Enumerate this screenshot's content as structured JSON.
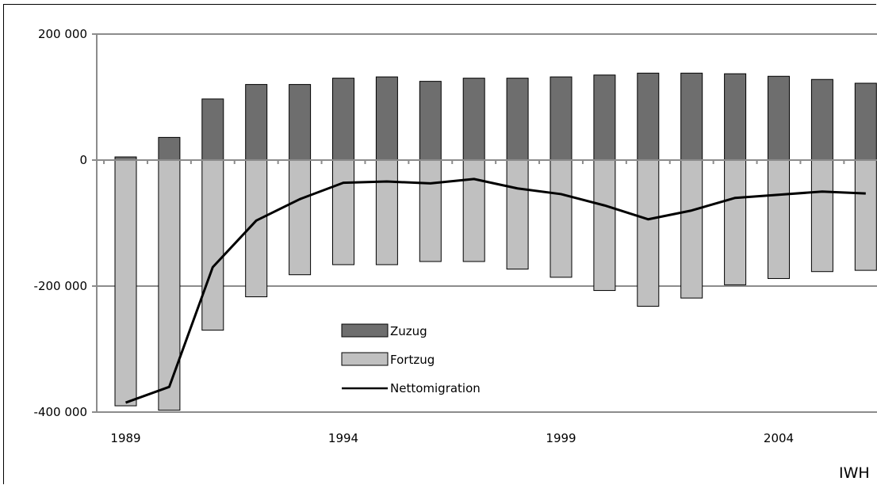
{
  "chart_data": {
    "type": "bar",
    "x": [
      1989,
      1990,
      1991,
      1992,
      1993,
      1994,
      1995,
      1996,
      1997,
      1998,
      1999,
      2000,
      2001,
      2002,
      2003,
      2004,
      2005,
      2006
    ],
    "xtick_labels": [
      "1989",
      "1994",
      "1999",
      "2004"
    ],
    "xtick_values": [
      1989,
      1994,
      1999,
      2004
    ],
    "ytick_labels": [
      "200 000",
      "0",
      "-200 000",
      "-400 000"
    ],
    "ytick_values": [
      200000,
      0,
      -200000,
      -400000
    ],
    "ylim": [
      -400000,
      200000
    ],
    "grid": true,
    "legend_position": "center-left",
    "series": [
      {
        "name": "Zuzug",
        "kind": "bar",
        "color": "#6e6e6e",
        "values": [
          5000,
          36000,
          97000,
          120000,
          120000,
          130000,
          132000,
          125000,
          130000,
          130000,
          132000,
          135000,
          138000,
          138000,
          137000,
          133000,
          128000,
          122000
        ]
      },
      {
        "name": "Fortzug",
        "kind": "bar",
        "color": "#c0c0c0",
        "values": [
          -390000,
          -397000,
          -270000,
          -217000,
          -182000,
          -166000,
          -166000,
          -161000,
          -161000,
          -173000,
          -186000,
          -207000,
          -232000,
          -219000,
          -198000,
          -188000,
          -177000,
          -175000
        ]
      },
      {
        "name": "Nettomigration",
        "kind": "line",
        "color": "#000000",
        "values": [
          -385000,
          -360000,
          -170000,
          -96000,
          -62000,
          -36000,
          -34000,
          -37000,
          -30000,
          -45000,
          -54000,
          -72000,
          -94000,
          -80000,
          -60000,
          -55000,
          -50000,
          -53000
        ]
      }
    ],
    "legend": [
      "Zuzug",
      "Fortzug",
      "Nettomigration"
    ]
  },
  "source_label": "IWH"
}
